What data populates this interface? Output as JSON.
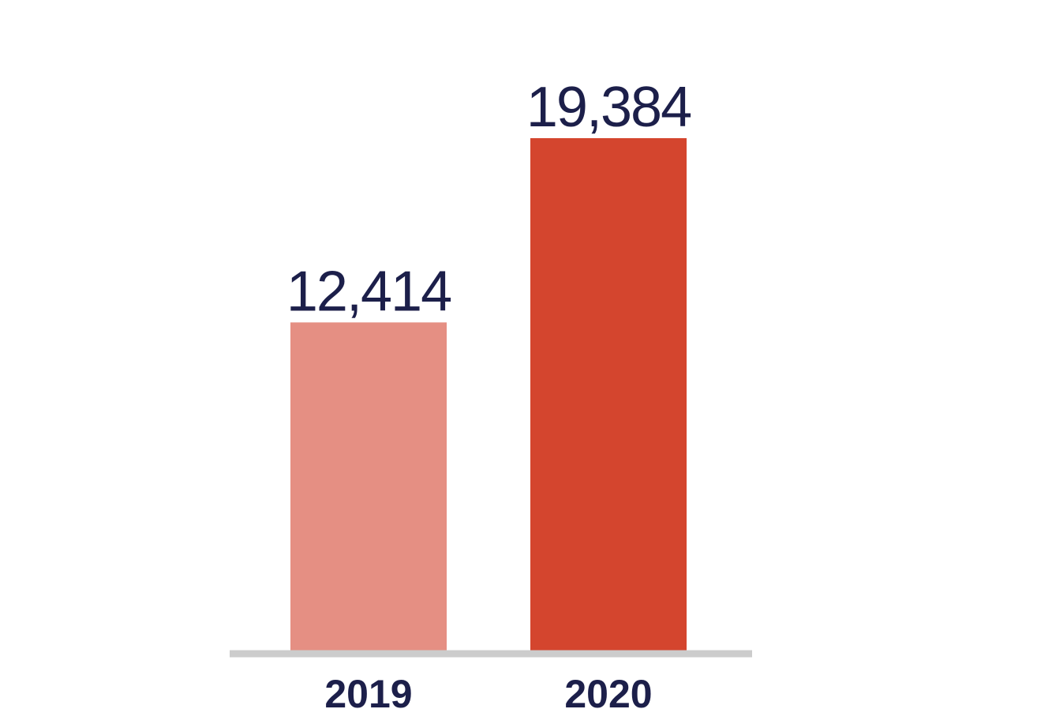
{
  "chart_data": {
    "type": "bar",
    "categories": [
      "2019",
      "2020"
    ],
    "values": [
      12414,
      19384
    ],
    "value_labels": [
      "12,414",
      "19,384"
    ],
    "title": "",
    "xlabel": "",
    "ylabel": "",
    "ylim": [
      0,
      19384
    ],
    "grid": false,
    "legend": "none",
    "colors": {
      "bars": [
        "#e58f83",
        "#d4452e"
      ],
      "text": "#1c1f4a",
      "axis": "#cccccc"
    }
  }
}
